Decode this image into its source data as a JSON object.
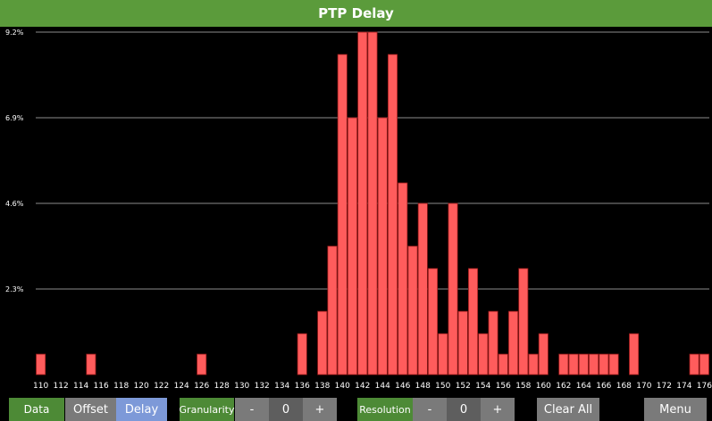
{
  "window": {
    "title": "PTP Delay"
  },
  "toolbar": {
    "data_label": "Data",
    "offset_label": "Offset",
    "delay_label": "Delay",
    "granularity_label": "Granularity",
    "granularity_minus": "-",
    "granularity_value": "0",
    "granularity_plus": "+",
    "resolution_label": "Resolution",
    "resolution_minus": "-",
    "resolution_value": "0",
    "resolution_plus": "+",
    "clear_label": "Clear All",
    "menu_label": "Menu"
  },
  "colors": {
    "title_bg": "#5b9b3b",
    "bar_fill": "#ff5c5c",
    "bar_stroke": "#9a1a1a",
    "grid": "#bbbbbb",
    "selected_tab": "#7d99d8"
  },
  "chart_data": {
    "type": "bar",
    "ytick_labels": [
      "2.3%",
      "4.6%",
      "6.9%",
      "9.2%"
    ],
    "ytick_values": [
      2.3,
      4.6,
      6.9,
      9.2
    ],
    "ylim": [
      0,
      9.2
    ],
    "xlim": [
      110,
      177
    ],
    "xtick_labels": [
      "110",
      "112",
      "114",
      "116",
      "118",
      "120",
      "122",
      "124",
      "126",
      "128",
      "130",
      "132",
      "134",
      "136",
      "138",
      "140",
      "142",
      "144",
      "146",
      "148",
      "150",
      "152",
      "154",
      "156",
      "158",
      "160",
      "162",
      "164",
      "166",
      "168",
      "170",
      "172",
      "174",
      "176"
    ],
    "xtick_values": [
      110,
      112,
      114,
      116,
      118,
      120,
      122,
      124,
      126,
      128,
      130,
      132,
      134,
      136,
      138,
      140,
      142,
      144,
      146,
      148,
      150,
      152,
      154,
      156,
      158,
      160,
      162,
      164,
      166,
      168,
      170,
      172,
      174,
      176
    ],
    "x": [
      110,
      111,
      112,
      113,
      114,
      115,
      116,
      117,
      118,
      119,
      120,
      121,
      122,
      123,
      124,
      125,
      126,
      127,
      128,
      129,
      130,
      131,
      132,
      133,
      134,
      135,
      136,
      137,
      138,
      139,
      140,
      141,
      142,
      143,
      144,
      145,
      146,
      147,
      148,
      149,
      150,
      151,
      152,
      153,
      154,
      155,
      156,
      157,
      158,
      159,
      160,
      161,
      162,
      163,
      164,
      165,
      166,
      167,
      168,
      169,
      170,
      171,
      172,
      173,
      174,
      175,
      176
    ],
    "values": [
      0.55,
      0,
      0,
      0,
      0,
      0.55,
      0,
      0,
      0,
      0,
      0,
      0,
      0,
      0,
      0,
      0,
      0.55,
      0,
      0,
      0,
      0,
      0,
      0,
      0,
      0,
      0,
      1.1,
      0,
      1.7,
      3.45,
      8.6,
      6.9,
      9.2,
      9.2,
      6.9,
      8.6,
      5.15,
      3.45,
      4.6,
      2.85,
      1.1,
      4.6,
      1.7,
      2.85,
      1.1,
      1.7,
      0.55,
      1.7,
      2.85,
      0.55,
      1.1,
      0,
      0.55,
      0.55,
      0.55,
      0.55,
      0.55,
      0.55,
      0,
      1.1,
      0,
      0,
      0,
      0,
      0,
      0.55,
      0.55
    ],
    "grid": true
  }
}
